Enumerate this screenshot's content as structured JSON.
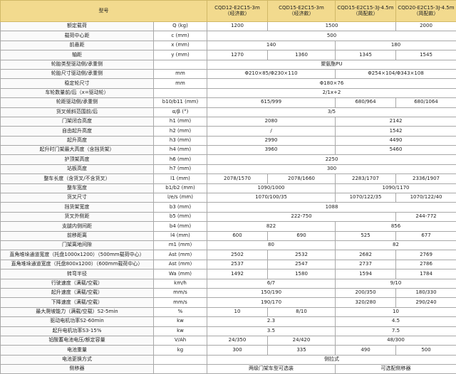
{
  "header": {
    "label": "型号",
    "models": [
      {
        "name": "CQD12-E2C15-3m",
        "note": "（经济款）"
      },
      {
        "name": "CQD15-E2C15-3m",
        "note": "（经济款）"
      },
      {
        "name": "CQD15-E2C15-3J-4.5m",
        "note": "（简配款）"
      },
      {
        "name": "CQD20-E2C15-3J-4.5m",
        "note": "（简配款）"
      }
    ]
  },
  "rows": [
    {
      "label": "额定载荷",
      "unit": "Q (kg)",
      "cells": [
        "1200",
        "1500",
        "2000"
      ]
    },
    {
      "label": "载荷中心距",
      "unit": "c (mm)",
      "cells": [
        "500"
      ]
    },
    {
      "label": "前悬距",
      "unit": "x (mm)",
      "cells": [
        "140",
        "180"
      ]
    },
    {
      "label": "轴距",
      "unit": "y (mm)",
      "cells": [
        "1270",
        "1360",
        "1345",
        "1545"
      ]
    },
    {
      "label": "轮胎类型驱动侧/承重侧",
      "cells": [
        "聚氨酯PU"
      ]
    },
    {
      "label": "轮胎尺寸驱动侧/承重侧",
      "unit": "mm",
      "cells": [
        "Φ210×85/Φ230×110",
        "Φ254×104/Φ343×108"
      ]
    },
    {
      "label": "稳定轮尺寸",
      "unit": "mm",
      "cells": [
        "Φ180×76"
      ]
    },
    {
      "label": "车轮数量前/后（x=驱动轮）",
      "cells": [
        "2/1x+2"
      ]
    },
    {
      "label": "轮距驱动侧/承重侧",
      "unit": "b10/b11 (mm)",
      "cells": [
        "615/999",
        "680/964",
        "680/1064"
      ]
    },
    {
      "label": "货叉倾斜范围前/后",
      "unit": "α/β (°)",
      "cells": [
        "3/5"
      ]
    },
    {
      "label": "门架闭合高度",
      "unit": "h1 (mm)",
      "cells": [
        "2080",
        "2142"
      ]
    },
    {
      "label": "自由起升高度",
      "unit": "h2 (mm)",
      "cells": [
        "/",
        "1542"
      ]
    },
    {
      "label": "起升高度",
      "unit": "h3 (mm)",
      "cells": [
        "2990",
        "4490"
      ]
    },
    {
      "label": "起升时门架最大高度（含挡货架）",
      "unit": "h4 (mm)",
      "cells": [
        "3960",
        "5460"
      ]
    },
    {
      "label": "护顶架高度",
      "unit": "h6 (mm)",
      "cells": [
        "2250"
      ]
    },
    {
      "label": "站板高度",
      "unit": "h7 (mm)",
      "cells": [
        "300"
      ]
    },
    {
      "label": "整车长度（含货叉/不含货叉）",
      "unit": "l1 (mm)",
      "cells": [
        "2078/1570",
        "2078/1660",
        "2283/1707",
        "2336/1907"
      ]
    },
    {
      "label": "整车宽度",
      "unit": "b1/b2 (mm)",
      "cells": [
        "1090/1000",
        "1090/1170"
      ]
    },
    {
      "label": "货叉尺寸",
      "unit": "l/e/s (mm)",
      "cells": [
        "1070/100/35",
        "1070/122/35",
        "1070/122/40"
      ]
    },
    {
      "label": "挡货架宽度",
      "unit": "b3 (mm)",
      "cells": [
        "1088"
      ]
    },
    {
      "label": "货叉外侧距",
      "unit": "b5 (mm)",
      "cells": [
        "222-750",
        "244-772"
      ]
    },
    {
      "label": "支腿内侧间距",
      "unit": "b4 (mm)",
      "cells": [
        "822",
        "856"
      ]
    },
    {
      "label": "前移距离",
      "unit": "l4 (mm)",
      "cells": [
        "600",
        "690",
        "525",
        "677"
      ]
    },
    {
      "label": "门架离地间隙",
      "unit": "m1 (mm)",
      "cells": [
        "80",
        "82"
      ]
    },
    {
      "label": "直角堆垛通道宽度（托盘1000x1200）（500mm载荷中心）",
      "unit": "Ast (mm)",
      "cells": [
        "2502",
        "2532",
        "2682",
        "2769"
      ]
    },
    {
      "label": "直角堆垛通道宽度（托盘800x1200）（600mm载荷中心）",
      "unit": "Ast (mm)",
      "cells": [
        "2537",
        "2547",
        "2737",
        "2786"
      ]
    },
    {
      "label": "转弯半径",
      "unit": "Wa (mm)",
      "cells": [
        "1492",
        "1580",
        "1594",
        "1784"
      ]
    },
    {
      "label": "行驶速度（满载/空载）",
      "unit": "km/h",
      "cells": [
        "6/7",
        "9/10"
      ]
    },
    {
      "label": "起升速度（满载/空载）",
      "unit": "mm/s",
      "cells": [
        "150/190",
        "200/350",
        "180/330"
      ]
    },
    {
      "label": "下降速度（满载/空载）",
      "unit": "mm/s",
      "cells": [
        "190/170",
        "320/280",
        "290/240"
      ]
    },
    {
      "label": "最大爬坡能力（满载/空载）S2-5min",
      "unit": "%",
      "cells": [
        "10",
        "8/10",
        "10"
      ]
    },
    {
      "label": "驱动电机功率S2-60min",
      "unit": "kw",
      "cells": [
        "2.3",
        "4.5"
      ]
    },
    {
      "label": "起升电机功率S3-15%",
      "unit": "kw",
      "cells": [
        "3.5",
        "7.5"
      ]
    },
    {
      "label": "铅酸蓄电池电压/额定容量",
      "unit": "V/Ah",
      "cells": [
        "24/350",
        "24/420",
        "48/300"
      ]
    },
    {
      "label": "电池重量",
      "unit": "kg",
      "cells": [
        "300",
        "335",
        "490",
        "500"
      ]
    },
    {
      "label": "电池更换方式",
      "cells": [
        "侧拉式"
      ]
    },
    {
      "label": "侧移器",
      "cells": [
        "两级门架车型可选装",
        "可选配侧移器"
      ]
    }
  ]
}
